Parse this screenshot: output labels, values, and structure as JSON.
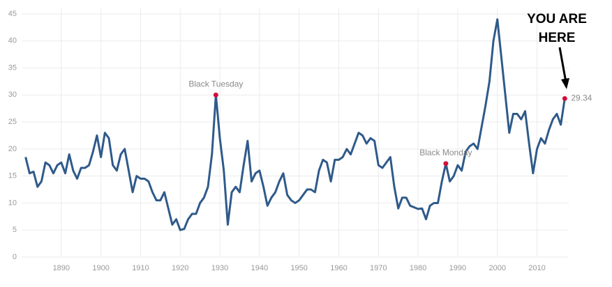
{
  "chart_data": {
    "type": "line",
    "x": [
      1881,
      1882,
      1883,
      1884,
      1885,
      1886,
      1887,
      1888,
      1889,
      1890,
      1891,
      1892,
      1893,
      1894,
      1895,
      1896,
      1897,
      1898,
      1899,
      1900,
      1901,
      1902,
      1903,
      1904,
      1905,
      1906,
      1907,
      1908,
      1909,
      1910,
      1911,
      1912,
      1913,
      1914,
      1915,
      1916,
      1917,
      1918,
      1919,
      1920,
      1921,
      1922,
      1923,
      1924,
      1925,
      1926,
      1927,
      1928,
      1929,
      1930,
      1931,
      1932,
      1933,
      1934,
      1935,
      1936,
      1937,
      1938,
      1939,
      1940,
      1941,
      1942,
      1943,
      1944,
      1945,
      1946,
      1947,
      1948,
      1949,
      1950,
      1951,
      1952,
      1953,
      1954,
      1955,
      1956,
      1957,
      1958,
      1959,
      1960,
      1961,
      1962,
      1963,
      1964,
      1965,
      1966,
      1967,
      1968,
      1969,
      1970,
      1971,
      1972,
      1973,
      1974,
      1975,
      1976,
      1977,
      1978,
      1979,
      1980,
      1981,
      1982,
      1983,
      1984,
      1985,
      1986,
      1987,
      1988,
      1989,
      1990,
      1991,
      1992,
      1993,
      1994,
      1995,
      1996,
      1997,
      1998,
      1999,
      2000,
      2001,
      2002,
      2003,
      2004,
      2005,
      2006,
      2007,
      2008,
      2009,
      2010,
      2011,
      2012,
      2013,
      2014,
      2015,
      2016,
      2017
    ],
    "series": [
      {
        "color": "#2f5a8a",
        "values": [
          18.5,
          15.5,
          15.8,
          13,
          14,
          17.5,
          17,
          15.5,
          17,
          17.5,
          15.5,
          19,
          16,
          14.5,
          16.5,
          16.5,
          17,
          19.5,
          22.5,
          18.5,
          23,
          22,
          17,
          16,
          19,
          20,
          16,
          12,
          15,
          14.5,
          14.5,
          14,
          12,
          10.5,
          10.5,
          12,
          9,
          6,
          7,
          5,
          5.2,
          7,
          8,
          8,
          10,
          11,
          13,
          19,
          30,
          22,
          16,
          6,
          12,
          13,
          12,
          17,
          21.5,
          14,
          15.5,
          16,
          13,
          9.5,
          11,
          12,
          14,
          15.5,
          11.5,
          10.5,
          10,
          10.5,
          11.5,
          12.5,
          12.5,
          12,
          16,
          18,
          17.5,
          14,
          18,
          18,
          18.5,
          20,
          19,
          21,
          23,
          22.5,
          21,
          22,
          21.5,
          17,
          16.5,
          17.5,
          18.5,
          13,
          9,
          11,
          11,
          9.5,
          9.2,
          8.9,
          9,
          7,
          9.5,
          10,
          10,
          14,
          17.3,
          14,
          15,
          17,
          16,
          19.5,
          20.5,
          21,
          20,
          24,
          28,
          32.5,
          40,
          44,
          37,
          30,
          23,
          26.5,
          26.5,
          25.5,
          27,
          21,
          15.5,
          20,
          22,
          21,
          23.5,
          25.5,
          26.5,
          24.5,
          29.34
        ]
      }
    ],
    "points": [
      {
        "label": "Black Tuesday",
        "x": 1929,
        "y": 30
      },
      {
        "label": "Black Monday",
        "x": 1987,
        "y": 17.3
      },
      {
        "x": 2017,
        "y": 29.34
      }
    ],
    "point_color": "#d0103a",
    "annotation": [
      "YOU ARE",
      "HERE"
    ],
    "xlim": [
      1880,
      2018
    ],
    "xticks": [
      1890,
      1900,
      1910,
      1920,
      1930,
      1940,
      1950,
      1960,
      1970,
      1980,
      1990,
      2000,
      2010
    ],
    "ylim": [
      0,
      45
    ],
    "yticks": [
      0,
      5,
      10,
      15,
      20,
      25,
      30,
      35,
      40,
      45
    ],
    "grid": true
  }
}
